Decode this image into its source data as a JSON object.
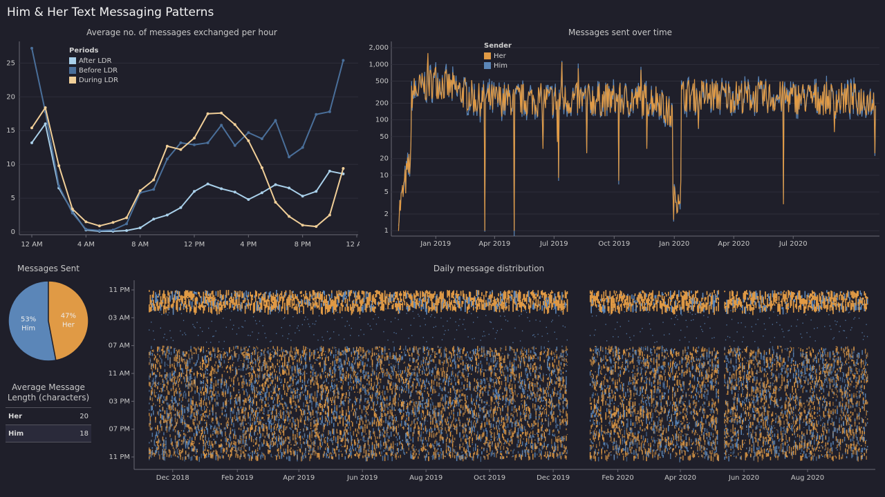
{
  "page_title": "Him & Her Text Messaging Patterns",
  "colors": {
    "after_ldr": "#a9d0ea",
    "before_ldr": "#4a6f9a",
    "during_ldr": "#f1cf98",
    "her": "#e09a45",
    "him": "#5b86b8",
    "background": "#1f1f2a"
  },
  "chart_data": [
    {
      "type": "line",
      "title": "Average no. of messages exchanged per hour",
      "legend_title": "Periods",
      "x": [
        0,
        1,
        2,
        3,
        4,
        5,
        6,
        7,
        8,
        9,
        10,
        11,
        12,
        13,
        14,
        15,
        16,
        17,
        18,
        19,
        20,
        21,
        22,
        23
      ],
      "x_tick_labels": [
        "12 AM",
        "4 AM",
        "8 AM",
        "12 PM",
        "4 PM",
        "8 PM",
        "12 AM"
      ],
      "x_tick_positions": [
        0,
        4,
        8,
        12,
        16,
        20,
        24
      ],
      "ylim": [
        0,
        28
      ],
      "y_ticks": [
        0,
        5,
        10,
        15,
        20,
        25
      ],
      "series": [
        {
          "name": "After LDR",
          "color_key": "after_ldr",
          "values": [
            13.2,
            16.0,
            6.5,
            3.0,
            0.3,
            0.1,
            0.1,
            0.2,
            0.6,
            1.9,
            2.5,
            3.6,
            6.0,
            7.1,
            6.4,
            5.9,
            4.8,
            5.8,
            7.0,
            6.5,
            5.3,
            6.0,
            9.0,
            8.6
          ]
        },
        {
          "name": "Before LDR",
          "color_key": "before_ldr",
          "values": [
            27.2,
            17.8,
            6.8,
            2.8,
            0.4,
            0.2,
            0.3,
            1.2,
            5.8,
            6.3,
            10.8,
            13.2,
            12.9,
            13.2,
            15.8,
            12.8,
            14.7,
            13.8,
            16.5,
            11.1,
            12.5,
            17.4,
            17.8,
            25.4
          ]
        },
        {
          "name": "During LDR",
          "color_key": "during_ldr",
          "values": [
            15.4,
            18.4,
            9.8,
            3.4,
            1.5,
            0.9,
            1.4,
            2.1,
            6.1,
            7.7,
            12.7,
            12.2,
            13.9,
            17.5,
            17.6,
            15.9,
            13.5,
            9.5,
            4.4,
            2.3,
            1.0,
            0.8,
            2.5,
            9.4
          ]
        }
      ]
    },
    {
      "type": "line",
      "title": "Messages sent over time",
      "legend_title": "Sender",
      "scale": "log",
      "y_ticks": [
        1,
        2,
        5,
        10,
        20,
        50,
        100,
        200,
        500,
        1000,
        2000
      ],
      "y_tick_labels": [
        "1",
        "2",
        "5",
        "10",
        "20",
        "50",
        "100",
        "200",
        "500",
        "1,000",
        "2,000"
      ],
      "x_range": [
        "2018-10-25",
        "2020-11-10"
      ],
      "x_tick_labels": [
        "Jan 2019",
        "Apr 2019",
        "Jul 2019",
        "Oct 2019",
        "Jan 2020",
        "Apr 2020",
        "Jul 2020"
      ],
      "x_tick_dates": [
        "2019-01-01",
        "2019-04-01",
        "2019-07-01",
        "2019-10-01",
        "2020-01-01",
        "2020-04-01",
        "2020-07-01"
      ],
      "series": [
        {
          "name": "Her",
          "color_key": "her"
        },
        {
          "name": "Him",
          "color_key": "him"
        }
      ],
      "segments": [
        {
          "start": "2018-11-05",
          "end": "2018-11-25",
          "level_from": 2,
          "level_to": 25
        },
        {
          "start": "2018-11-25",
          "end": "2018-12-30",
          "level_from": 300,
          "level_to": 500
        },
        {
          "start": "2018-12-30",
          "end": "2019-03-01",
          "level_from": 500,
          "level_to": 250
        },
        {
          "start": "2019-03-01",
          "end": "2019-12-15",
          "level_from": 230,
          "level_to": 230
        },
        {
          "start": "2019-12-15",
          "end": "2019-12-30",
          "level_from": 150,
          "level_to": 120
        },
        {
          "start": "2019-12-30",
          "end": "2020-01-12",
          "level_from": 3,
          "level_to": 6
        },
        {
          "start": "2020-01-12",
          "end": "2020-11-05",
          "level_from": 280,
          "level_to": 230
        }
      ],
      "dips": [
        {
          "date": "2019-03-17",
          "value": 1
        },
        {
          "date": "2019-05-01",
          "value": 1
        },
        {
          "date": "2019-06-14",
          "value": 30
        },
        {
          "date": "2019-07-06",
          "value": 40
        },
        {
          "date": "2019-07-08",
          "value": 9
        },
        {
          "date": "2019-08-20",
          "value": 25
        },
        {
          "date": "2019-10-08",
          "value": 8
        },
        {
          "date": "2019-11-20",
          "value": 30
        },
        {
          "date": "2020-02-07",
          "value": 70
        },
        {
          "date": "2020-06-16",
          "value": 3
        },
        {
          "date": "2020-09-02",
          "value": 60
        },
        {
          "date": "2020-11-03",
          "value": 25
        }
      ],
      "peaks": [
        {
          "date": "2018-12-20",
          "value": 1600
        },
        {
          "date": "2019-01-01",
          "value": 900
        },
        {
          "date": "2019-07-13",
          "value": 1100
        },
        {
          "date": "2019-08-07",
          "value": 850
        },
        {
          "date": "2019-11-11",
          "value": 800
        }
      ]
    },
    {
      "type": "pie",
      "title": "Messages Sent",
      "slices": [
        {
          "label": "Him",
          "percent": 53,
          "color_key": "him"
        },
        {
          "label": "Her",
          "percent": 47,
          "color_key": "her"
        }
      ]
    },
    {
      "type": "table",
      "title": "Average Message Length (characters)",
      "rows": [
        {
          "label": "Her",
          "value": 20
        },
        {
          "label": "Him",
          "value": 18
        }
      ]
    },
    {
      "type": "scatter",
      "title": "Daily message distribution",
      "x_range": [
        "2018-10-25",
        "2020-10-05"
      ],
      "x_tick_labels": [
        "Dec 2018",
        "Feb 2019",
        "Apr 2019",
        "Jun 2019",
        "Aug 2019",
        "Oct 2019",
        "Dec 2019",
        "Feb 2020",
        "Apr 2020",
        "Jun 2020",
        "Aug 2020"
      ],
      "x_tick_dates": [
        "2018-12-01",
        "2019-02-01",
        "2019-04-01",
        "2019-06-01",
        "2019-08-01",
        "2019-10-01",
        "2019-12-01",
        "2020-02-01",
        "2020-04-01",
        "2020-06-01",
        "2020-08-01"
      ],
      "y_tick_labels": [
        "11 PM",
        "03 AM",
        "07 AM",
        "11 AM",
        "03 PM",
        "07 PM",
        "11 PM"
      ],
      "y_tick_hours": [
        -1,
        3,
        7,
        11,
        15,
        19,
        23
      ],
      "series": [
        {
          "name": "Her",
          "color_key": "her"
        },
        {
          "name": "Him",
          "color_key": "him"
        }
      ],
      "active_periods": [
        {
          "start": "2018-11-08",
          "end": "2019-12-15"
        },
        {
          "start": "2020-01-05",
          "end": "2020-05-08"
        },
        {
          "start": "2020-05-13",
          "end": "2020-09-28"
        }
      ]
    }
  ]
}
